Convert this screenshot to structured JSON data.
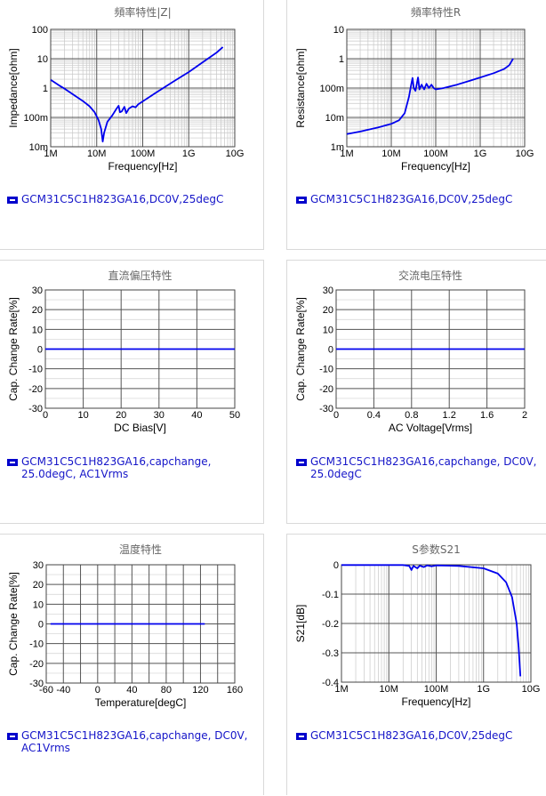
{
  "chart_data": [
    {
      "type": "line",
      "title": "頻率特性|Z|",
      "xlabel": "Frequency[Hz]",
      "ylabel": "Impedance[ohm]",
      "xscale": "log",
      "yscale": "log",
      "xlim": [
        1000000,
        10000000000
      ],
      "ylim": [
        0.01,
        100
      ],
      "xticks": [
        {
          "v": 1000000,
          "label": "1M"
        },
        {
          "v": 10000000,
          "label": "10M"
        },
        {
          "v": 100000000,
          "label": "100M"
        },
        {
          "v": 1000000000,
          "label": "1G"
        },
        {
          "v": 10000000000,
          "label": "10G"
        }
      ],
      "yticks": [
        {
          "v": 0.01,
          "label": "10m"
        },
        {
          "v": 0.1,
          "label": "100m"
        },
        {
          "v": 1,
          "label": "1"
        },
        {
          "v": 10,
          "label": "10"
        },
        {
          "v": 100,
          "label": "100"
        }
      ],
      "grid": true,
      "series": [
        {
          "name": "GCM31C5C1H823GA16,DC0V,25degC",
          "color": "#0000ee",
          "points": [
            [
              1000000,
              1.9
            ],
            [
              1500000,
              1.25
            ],
            [
              2000000,
              0.95
            ],
            [
              3000000,
              0.62
            ],
            [
              5000000,
              0.36
            ],
            [
              7000000,
              0.24
            ],
            [
              9000000,
              0.15
            ],
            [
              11000000,
              0.08
            ],
            [
              12500000,
              0.04
            ],
            [
              13500000,
              0.015
            ],
            [
              14500000,
              0.03
            ],
            [
              17000000,
              0.07
            ],
            [
              22000000,
              0.12
            ],
            [
              27000000,
              0.2
            ],
            [
              30000000,
              0.25
            ],
            [
              32000000,
              0.15
            ],
            [
              35000000,
              0.16
            ],
            [
              40000000,
              0.23
            ],
            [
              44000000,
              0.14
            ],
            [
              50000000,
              0.2
            ],
            [
              60000000,
              0.24
            ],
            [
              70000000,
              0.22
            ],
            [
              80000000,
              0.28
            ],
            [
              100000000,
              0.35
            ],
            [
              200000000,
              0.72
            ],
            [
              500000000,
              1.8
            ],
            [
              1000000000,
              3.5
            ],
            [
              2000000000,
              7.5
            ],
            [
              4000000000,
              16
            ],
            [
              5500000000,
              25
            ]
          ]
        }
      ],
      "legend": "GCM31C5C1H823GA16,DC0V,25degC"
    },
    {
      "type": "line",
      "title": "頻率特性R",
      "xlabel": "Frequency[Hz]",
      "ylabel": "Resistance[ohm]",
      "xscale": "log",
      "yscale": "log",
      "xlim": [
        1000000,
        10000000000
      ],
      "ylim": [
        0.001,
        10
      ],
      "xticks": [
        {
          "v": 1000000,
          "label": "1M"
        },
        {
          "v": 10000000,
          "label": "10M"
        },
        {
          "v": 100000000,
          "label": "100M"
        },
        {
          "v": 1000000000,
          "label": "1G"
        },
        {
          "v": 10000000000,
          "label": "10G"
        }
      ],
      "yticks": [
        {
          "v": 0.001,
          "label": "1m"
        },
        {
          "v": 0.01,
          "label": "10m"
        },
        {
          "v": 0.1,
          "label": "100m"
        },
        {
          "v": 1,
          "label": "1"
        },
        {
          "v": 10,
          "label": "10"
        }
      ],
      "grid": true,
      "series": [
        {
          "name": "GCM31C5C1H823GA16,DC0V,25degC",
          "color": "#0000ee",
          "points": [
            [
              1000000,
              0.0027
            ],
            [
              2000000,
              0.0033
            ],
            [
              5000000,
              0.0045
            ],
            [
              10000000,
              0.006
            ],
            [
              15000000,
              0.008
            ],
            [
              20000000,
              0.014
            ],
            [
              25000000,
              0.05
            ],
            [
              28000000,
              0.13
            ],
            [
              30000000,
              0.22
            ],
            [
              32000000,
              0.1
            ],
            [
              35000000,
              0.08
            ],
            [
              40000000,
              0.23
            ],
            [
              43000000,
              0.09
            ],
            [
              48000000,
              0.13
            ],
            [
              55000000,
              0.09
            ],
            [
              62000000,
              0.14
            ],
            [
              70000000,
              0.1
            ],
            [
              80000000,
              0.13
            ],
            [
              90000000,
              0.1
            ],
            [
              100000000,
              0.09
            ],
            [
              150000000,
              0.1
            ],
            [
              300000000,
              0.13
            ],
            [
              600000000,
              0.18
            ],
            [
              1000000000,
              0.23
            ],
            [
              2000000000,
              0.32
            ],
            [
              3500000000,
              0.45
            ],
            [
              4500000000,
              0.6
            ],
            [
              5500000000,
              1.0
            ]
          ]
        }
      ],
      "legend": "GCM31C5C1H823GA16,DC0V,25degC"
    },
    {
      "type": "line",
      "title": "直流偏压特性",
      "xlabel": "DC Bias[V]",
      "ylabel": "Cap. Change Rate[%]",
      "xlim": [
        0,
        50
      ],
      "ylim": [
        -30,
        30
      ],
      "xticks": [
        {
          "v": 0,
          "label": "0"
        },
        {
          "v": 10,
          "label": "10"
        },
        {
          "v": 20,
          "label": "20"
        },
        {
          "v": 30,
          "label": "30"
        },
        {
          "v": 40,
          "label": "40"
        },
        {
          "v": 50,
          "label": "50"
        }
      ],
      "yticks": [
        {
          "v": -30,
          "label": "-30"
        },
        {
          "v": -20,
          "label": "-20"
        },
        {
          "v": -10,
          "label": "-10"
        },
        {
          "v": 0,
          "label": "0"
        },
        {
          "v": 10,
          "label": "10"
        },
        {
          "v": 20,
          "label": "20"
        },
        {
          "v": 30,
          "label": "30"
        }
      ],
      "minor_y": 5,
      "grid": true,
      "series": [
        {
          "name": "GCM31C5C1H823GA16,capchange, 25.0degC, AC1Vrms",
          "color": "#0000ee",
          "points": [
            [
              0,
              0
            ],
            [
              10,
              0
            ],
            [
              20,
              0
            ],
            [
              30,
              0
            ],
            [
              40,
              0
            ],
            [
              50,
              0
            ]
          ]
        }
      ],
      "legend": "GCM31C5C1H823GA16,capchange, 25.0degC, AC1Vrms"
    },
    {
      "type": "line",
      "title": "交流电压特性",
      "xlabel": "AC Voltage[Vrms]",
      "ylabel": "Cap. Change Rate[%]",
      "xlim": [
        0,
        2
      ],
      "ylim": [
        -30,
        30
      ],
      "xticks": [
        {
          "v": 0,
          "label": "0"
        },
        {
          "v": 0.4,
          "label": "0.4"
        },
        {
          "v": 0.8,
          "label": "0.8"
        },
        {
          "v": 1.2,
          "label": "1.2"
        },
        {
          "v": 1.6,
          "label": "1.6"
        },
        {
          "v": 2,
          "label": "2"
        }
      ],
      "yticks": [
        {
          "v": -30,
          "label": "-30"
        },
        {
          "v": -20,
          "label": "-20"
        },
        {
          "v": -10,
          "label": "-10"
        },
        {
          "v": 0,
          "label": "0"
        },
        {
          "v": 10,
          "label": "10"
        },
        {
          "v": 20,
          "label": "20"
        },
        {
          "v": 30,
          "label": "30"
        }
      ],
      "minor_y": 5,
      "grid": true,
      "series": [
        {
          "name": "GCM31C5C1H823GA16,capchange, DC0V, 25.0degC",
          "color": "#0000ee",
          "points": [
            [
              0,
              0
            ],
            [
              0.4,
              0
            ],
            [
              0.8,
              0
            ],
            [
              1.2,
              0
            ],
            [
              1.6,
              0
            ],
            [
              2,
              0
            ]
          ]
        }
      ],
      "legend": "GCM31C5C1H823GA16,capchange, DC0V, 25.0degC"
    },
    {
      "type": "line",
      "title": "温度特性",
      "xlabel": "Temperature[degC]",
      "ylabel": "Cap. Change Rate[%]",
      "xlim": [
        -60,
        160
      ],
      "ylim": [
        -30,
        30
      ],
      "xticks": [
        {
          "v": -60,
          "label": "-60"
        },
        {
          "v": -40,
          "label": "-40"
        },
        {
          "v": 0,
          "label": "0"
        },
        {
          "v": 40,
          "label": "40"
        },
        {
          "v": 80,
          "label": "80"
        },
        {
          "v": 120,
          "label": "120"
        },
        {
          "v": 160,
          "label": "160"
        }
      ],
      "xgrid": [
        -60,
        -40,
        -20,
        0,
        20,
        40,
        60,
        80,
        100,
        120,
        140,
        160
      ],
      "yticks": [
        {
          "v": -30,
          "label": "-30"
        },
        {
          "v": -20,
          "label": "-20"
        },
        {
          "v": -10,
          "label": "-10"
        },
        {
          "v": 0,
          "label": "0"
        },
        {
          "v": 10,
          "label": "10"
        },
        {
          "v": 20,
          "label": "20"
        },
        {
          "v": 30,
          "label": "30"
        }
      ],
      "minor_y": 5,
      "grid": true,
      "series": [
        {
          "name": "GCM31C5C1H823GA16,capchange, DC0V, AC1Vrms",
          "color": "#0000ee",
          "points": [
            [
              -55,
              0
            ],
            [
              -20,
              0
            ],
            [
              25,
              0
            ],
            [
              85,
              0
            ],
            [
              125,
              0
            ]
          ]
        }
      ],
      "legend": "GCM31C5C1H823GA16,capchange, DC0V, AC1Vrms"
    },
    {
      "type": "line",
      "title": "S参数S21",
      "xlabel": "Frequency[Hz]",
      "ylabel": "S21[dB]",
      "xscale": "log",
      "xlim": [
        1000000,
        10000000000
      ],
      "ylim": [
        -0.4,
        0
      ],
      "xticks": [
        {
          "v": 1000000,
          "label": "1M"
        },
        {
          "v": 10000000,
          "label": "10M"
        },
        {
          "v": 100000000,
          "label": "100M"
        },
        {
          "v": 1000000000,
          "label": "1G"
        },
        {
          "v": 10000000000,
          "label": "10G"
        }
      ],
      "yticks": [
        {
          "v": -0.4,
          "label": "-0.4"
        },
        {
          "v": -0.3,
          "label": "-0.3"
        },
        {
          "v": -0.2,
          "label": "-0.2"
        },
        {
          "v": -0.1,
          "label": "-0.1"
        },
        {
          "v": 0,
          "label": "0"
        }
      ],
      "grid": true,
      "series": [
        {
          "name": "GCM31C5C1H823GA16,DC0V,25degC",
          "color": "#0000ee",
          "points": [
            [
              1000000,
              -0.001
            ],
            [
              20000000,
              -0.001
            ],
            [
              27000000,
              -0.004
            ],
            [
              30000000,
              -0.018
            ],
            [
              33000000,
              -0.004
            ],
            [
              40000000,
              -0.012
            ],
            [
              45000000,
              -0.003
            ],
            [
              55000000,
              -0.008
            ],
            [
              65000000,
              -0.002
            ],
            [
              80000000,
              -0.005
            ],
            [
              100000000,
              -0.002
            ],
            [
              300000000,
              -0.004
            ],
            [
              1000000000,
              -0.012
            ],
            [
              2000000000,
              -0.03
            ],
            [
              3000000000,
              -0.06
            ],
            [
              4000000000,
              -0.11
            ],
            [
              5000000000,
              -0.2
            ],
            [
              5500000000,
              -0.28
            ],
            [
              6000000000,
              -0.38
            ]
          ]
        }
      ],
      "legend": "GCM31C5C1H823GA16,DC0V,25degC"
    }
  ]
}
